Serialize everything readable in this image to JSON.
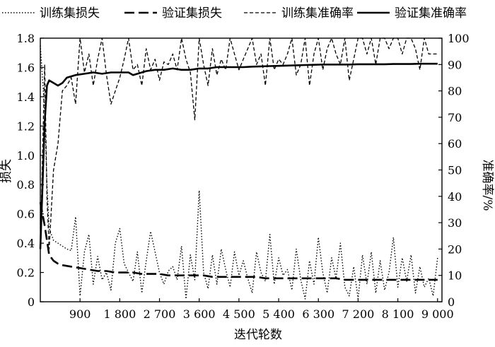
{
  "chart_data": {
    "type": "line",
    "xlabel": "迭代轮数",
    "ylabel_left": "损失",
    "ylabel_right": "准确率/%",
    "x_ticks": [
      900,
      1800,
      2700,
      3600,
      4500,
      5400,
      6300,
      7200,
      8100,
      9000
    ],
    "x_tick_labels": [
      "900",
      "1 800",
      "2 700",
      "3 600",
      "4 500",
      "5 400",
      "6 300",
      "7 200",
      "8 100",
      "9 000"
    ],
    "xlim": [
      0,
      9100
    ],
    "y_left_ticks": [
      0,
      0.2,
      0.4,
      0.6,
      0.8,
      1.0,
      1.2,
      1.4,
      1.6,
      1.8
    ],
    "y_left_tick_labels": [
      "0",
      "0.2",
      "0.4",
      "0.6",
      "0.8",
      "1.0",
      "1.2",
      "1.4",
      "1.6",
      "1.8"
    ],
    "ylim_left": [
      0,
      1.8
    ],
    "y_right_ticks": [
      0,
      10,
      20,
      30,
      40,
      50,
      60,
      70,
      80,
      90,
      100
    ],
    "y_right_tick_labels": [
      "0",
      "10",
      "20",
      "30",
      "40",
      "50",
      "60",
      "70",
      "80",
      "90",
      "100"
    ],
    "ylim_right": [
      0,
      100
    ],
    "legend_position": "top",
    "series": [
      {
        "name": "训练集损失",
        "axis": "left",
        "style": "dotted",
        "x": [
          0,
          100,
          150,
          200,
          300,
          400,
          500,
          600,
          700,
          800,
          900,
          1000,
          1100,
          1200,
          1300,
          1400,
          1500,
          1600,
          1700,
          1800,
          1900,
          2000,
          2100,
          2200,
          2300,
          2400,
          2500,
          2600,
          2700,
          2800,
          2900,
          3000,
          3100,
          3200,
          3300,
          3400,
          3500,
          3600,
          3700,
          3800,
          3900,
          4000,
          4100,
          4200,
          4300,
          4400,
          4500,
          4600,
          4700,
          4800,
          4900,
          5000,
          5100,
          5200,
          5300,
          5400,
          5500,
          5600,
          5700,
          5800,
          5900,
          6000,
          6100,
          6200,
          6300,
          6400,
          6500,
          6600,
          6700,
          6800,
          6900,
          7000,
          7100,
          7200,
          7300,
          7400,
          7500,
          7600,
          7700,
          7800,
          7900,
          8000,
          8100,
          8200,
          8300,
          8400,
          8500,
          8600,
          8700,
          8800,
          8900,
          9000
        ],
        "values": [
          1.75,
          1.3,
          0.8,
          0.5,
          0.42,
          0.4,
          0.38,
          0.36,
          0.35,
          0.58,
          0.04,
          0.34,
          0.46,
          0.12,
          0.31,
          0.15,
          0.2,
          0.08,
          0.4,
          0.5,
          0.26,
          0.2,
          0.14,
          0.34,
          0.06,
          0.28,
          0.48,
          0.34,
          0.2,
          0.12,
          0.21,
          0.24,
          0.15,
          0.38,
          0.02,
          0.32,
          0.15,
          0.76,
          0.2,
          0.09,
          0.32,
          0.12,
          0.36,
          0.22,
          0.1,
          0.34,
          0.18,
          0.28,
          0.16,
          0.06,
          0.34,
          0.2,
          0.14,
          0.46,
          0.12,
          0.3,
          0.18,
          0.22,
          0.08,
          0.36,
          0.15,
          0.02,
          0.28,
          0.12,
          0.44,
          0.2,
          0.06,
          0.3,
          0.16,
          0.4,
          0.1,
          0.04,
          0.24,
          0.02,
          0.32,
          0.12,
          0.34,
          0.06,
          0.28,
          0.08,
          0.2,
          0.44,
          0.1,
          0.3,
          0.14,
          0.32,
          0.06,
          0.24,
          0.1,
          0.16,
          0.04,
          0.3
        ]
      },
      {
        "name": "验证集损失",
        "axis": "left",
        "style": "long-dash",
        "x": [
          0,
          100,
          200,
          300,
          400,
          500,
          700,
          900,
          1100,
          1300,
          1500,
          1700,
          1900,
          2100,
          2300,
          2500,
          2700,
          2900,
          3100,
          3300,
          3500,
          3700,
          3900,
          4100,
          4300,
          4500,
          4700,
          4900,
          5100,
          5300,
          5500,
          5700,
          5900,
          6100,
          6300,
          6500,
          6700,
          6900,
          7100,
          7300,
          7500,
          7700,
          7900,
          8100,
          8300,
          8500,
          8700,
          8900,
          9000
        ],
        "values": [
          0.68,
          0.52,
          0.32,
          0.28,
          0.26,
          0.25,
          0.24,
          0.23,
          0.22,
          0.21,
          0.21,
          0.2,
          0.2,
          0.2,
          0.19,
          0.19,
          0.19,
          0.18,
          0.18,
          0.18,
          0.18,
          0.18,
          0.17,
          0.17,
          0.17,
          0.17,
          0.17,
          0.17,
          0.16,
          0.16,
          0.16,
          0.16,
          0.16,
          0.16,
          0.16,
          0.16,
          0.16,
          0.15,
          0.15,
          0.15,
          0.15,
          0.15,
          0.15,
          0.15,
          0.15,
          0.15,
          0.15,
          0.15,
          0.15
        ]
      },
      {
        "name": "训练集准确率",
        "axis": "right",
        "style": "dashed",
        "x": [
          0,
          100,
          150,
          200,
          300,
          400,
          500,
          600,
          700,
          800,
          900,
          1000,
          1100,
          1200,
          1300,
          1400,
          1500,
          1600,
          1700,
          1800,
          1900,
          2000,
          2100,
          2200,
          2300,
          2400,
          2500,
          2600,
          2700,
          2800,
          2900,
          3000,
          3100,
          3200,
          3300,
          3400,
          3500,
          3600,
          3700,
          3800,
          3900,
          4000,
          4100,
          4200,
          4300,
          4400,
          4500,
          4600,
          4700,
          4800,
          4900,
          5000,
          5100,
          5200,
          5300,
          5400,
          5500,
          5600,
          5700,
          5800,
          5900,
          6000,
          6100,
          6200,
          6300,
          6400,
          6500,
          6600,
          6700,
          6800,
          6900,
          7000,
          7100,
          7200,
          7300,
          7400,
          7500,
          7600,
          7700,
          7800,
          7900,
          8000,
          8100,
          8200,
          8300,
          8400,
          8500,
          8600,
          8700,
          8800,
          8900,
          9000
        ],
        "values": [
          20,
          90,
          40,
          20,
          50,
          60,
          80,
          82,
          85,
          75,
          100,
          87,
          94,
          82,
          92,
          100,
          86,
          75,
          80,
          85,
          92,
          100,
          88,
          90,
          82,
          96,
          88,
          92,
          84,
          91,
          90,
          94,
          88,
          100,
          92,
          87,
          69,
          100,
          90,
          82,
          96,
          86,
          92,
          88,
          100,
          94,
          88,
          92,
          96,
          100,
          90,
          94,
          82,
          100,
          88,
          92,
          90,
          94,
          100,
          86,
          90,
          100,
          82,
          94,
          100,
          88,
          96,
          100,
          94,
          90,
          100,
          84,
          92,
          100,
          100,
          94,
          100,
          90,
          100,
          100,
          96,
          100,
          100,
          94,
          100,
          100,
          96,
          88,
          100,
          94,
          94,
          94
        ]
      },
      {
        "name": "验证集准确率",
        "axis": "right",
        "style": "solid",
        "x": [
          0,
          100,
          150,
          200,
          300,
          400,
          500,
          600,
          800,
          1000,
          1200,
          1400,
          1600,
          1800,
          2000,
          2100,
          2200,
          2400,
          2600,
          2800,
          3000,
          3200,
          3400,
          3600,
          3800,
          4000,
          4200,
          4400,
          4600,
          4800,
          5000,
          5200,
          5400,
          5600,
          5800,
          6000,
          6200,
          6400,
          6600,
          6800,
          7000,
          7200,
          7400,
          7600,
          7800,
          8000,
          8200,
          8400,
          8600,
          8800,
          9000
        ],
        "values": [
          20,
          68,
          82,
          84,
          83,
          82,
          83,
          85,
          86,
          86.5,
          87,
          86.5,
          87,
          87,
          87,
          86,
          86.5,
          87.5,
          88,
          88,
          88.5,
          88,
          88,
          88.5,
          88.5,
          89,
          89,
          89,
          89,
          89.2,
          89.3,
          89.4,
          89.5,
          89.6,
          89.7,
          89.8,
          89.9,
          90,
          90,
          90,
          90,
          90.1,
          90.1,
          90.1,
          90.1,
          90.2,
          90.2,
          90.2,
          90.3,
          90.3,
          90.3
        ]
      }
    ]
  }
}
